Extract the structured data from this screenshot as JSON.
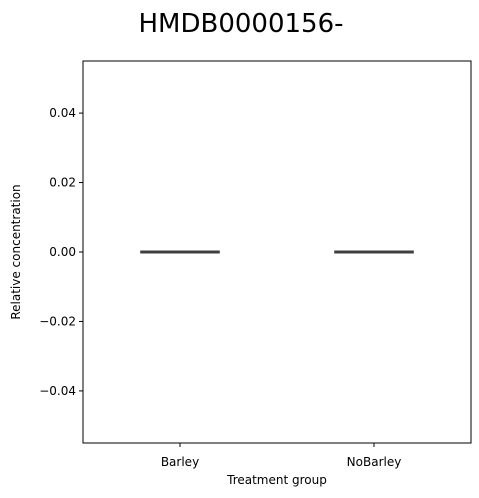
{
  "chart_data": {
    "type": "box",
    "title": "HMDB0000156-",
    "xlabel": "Treatment group",
    "ylabel": "Relative concentration",
    "categories": [
      "Barley",
      "NoBarley"
    ],
    "boxes": [
      {
        "category": "Barley",
        "min": 0.0,
        "q1": 0.0,
        "median": 0.0,
        "q3": 0.0,
        "max": 0.0
      },
      {
        "category": "NoBarley",
        "min": 0.0,
        "q1": 0.0,
        "median": 0.0,
        "q3": 0.0,
        "max": 0.0
      }
    ],
    "ylim": [
      -0.055,
      0.055
    ],
    "yticks": [
      -0.04,
      -0.02,
      0.0,
      0.02,
      0.04
    ],
    "ytick_labels": [
      "−0.04",
      "−0.02",
      "0.00",
      "0.02",
      "0.04"
    ],
    "grid": false,
    "box_color": "#3f3f3f"
  }
}
